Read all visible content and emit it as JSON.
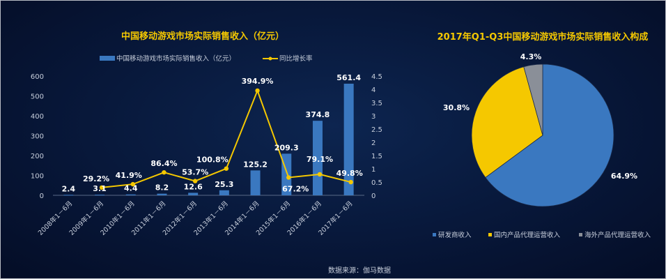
{
  "chart_data": [
    {
      "type": "bar+line",
      "title": "中国移动游戏市场实际销售收入（亿元）",
      "categories": [
        "2008年1－6月",
        "2009年1－6月",
        "2010年1－6月",
        "2011年1－6月",
        "2012年1－6月",
        "2013年1－6月",
        "2014年1－6月",
        "2015年1－6月",
        "2016年1－6月",
        "2017年1－6月"
      ],
      "series": [
        {
          "name": "中国移动游戏市场实际销售收入（亿元）",
          "kind": "bar",
          "axis": "left",
          "values": [
            2.4,
            3.1,
            4.4,
            8.2,
            12.6,
            25.3,
            125.2,
            209.3,
            374.8,
            561.4
          ],
          "labels": [
            "2.4",
            "3.1",
            "4.4",
            "8.2",
            "12.6",
            "25.3",
            "125.2",
            "209.3",
            "374.8",
            "561.4"
          ],
          "color": "#3a78c0"
        },
        {
          "name": "同比增长率",
          "kind": "line",
          "axis": "right",
          "values": [
            null,
            0.292,
            0.419,
            0.864,
            0.537,
            1.008,
            3.949,
            0.672,
            0.791,
            0.498
          ],
          "labels": [
            "",
            "29.2%",
            "41.9%",
            "86.4%",
            "53.7%",
            "100.8%",
            "394.9%",
            "67.2%",
            "79.1%",
            "49.8%"
          ],
          "color": "#f5c800"
        }
      ],
      "ylim_left": [
        0,
        600
      ],
      "yticks_left": [
        "0",
        "100",
        "200",
        "300",
        "400",
        "500",
        "600"
      ],
      "ylim_right": [
        0,
        4.5
      ],
      "yticks_right": [
        "0",
        "0.5",
        "1",
        "1.5",
        "2",
        "2.5",
        "3",
        "3.5",
        "4",
        "4.5"
      ],
      "legend": "top",
      "grid": false
    },
    {
      "type": "pie",
      "title": "2017年Q1-Q3中国移动游戏市场实际销售收入构成",
      "slices": [
        {
          "name": "研发商收入",
          "value": 64.9,
          "label": "64.9%",
          "color": "#3a78c0"
        },
        {
          "name": "国内产品代理运营收入",
          "value": 30.8,
          "label": "30.8%",
          "color": "#f5c800"
        },
        {
          "name": "海外产品代理运营收入",
          "value": 4.3,
          "label": "4.3%",
          "color": "#8a8f98"
        }
      ],
      "legend": "bottom"
    }
  ],
  "source": "数据来源：伽马数据"
}
